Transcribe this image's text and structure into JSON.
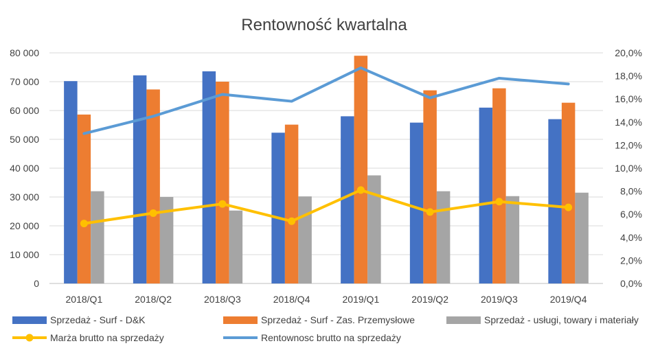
{
  "chart_data": {
    "type": "bar",
    "title": "Rentowność kwartalna",
    "categories": [
      "2018/Q1",
      "2018/Q2",
      "2018/Q3",
      "2018/Q4",
      "2019/Q1",
      "2019/Q2",
      "2019/Q3",
      "2019/Q4"
    ],
    "ylim": [
      0,
      80000
    ],
    "y_ticks": [
      "0",
      "10 000",
      "20 000",
      "30 000",
      "40 000",
      "50 000",
      "60 000",
      "70 000",
      "80 000"
    ],
    "y2lim": [
      0,
      20
    ],
    "y2_ticks": [
      "0,0%",
      "2,0%",
      "4,0%",
      "6,0%",
      "8,0%",
      "10,0%",
      "12,0%",
      "14,0%",
      "16,0%",
      "18,0%",
      "20,0%"
    ],
    "grid": true,
    "legend_position": "bottom",
    "series": [
      {
        "name": "Sprzedaż - Surf - D&K",
        "type": "bar",
        "axis": "left",
        "color": "#4472C4",
        "values": [
          70200,
          72200,
          73600,
          52300,
          58000,
          55800,
          61000,
          57000
        ]
      },
      {
        "name": "Sprzedaż - Surf - Zas. Przemysłowe",
        "type": "bar",
        "axis": "left",
        "color": "#ED7D31",
        "values": [
          58600,
          67300,
          70000,
          55100,
          79000,
          67000,
          67700,
          62700
        ]
      },
      {
        "name": "Sprzedaż - usługi, towary i materiały",
        "type": "bar",
        "axis": "left",
        "color": "#A5A5A5",
        "values": [
          32000,
          30000,
          25300,
          30200,
          37500,
          32000,
          30300,
          31500
        ]
      },
      {
        "name": "Marża brutto na sprzedaży",
        "type": "line",
        "axis": "right",
        "color": "#FFC000",
        "marker": "circle",
        "values": [
          5.2,
          6.1,
          6.9,
          5.4,
          8.1,
          6.2,
          7.1,
          6.6
        ]
      },
      {
        "name": "Rentownosc brutto na sprzedaży",
        "type": "line",
        "axis": "right",
        "color": "#5B9BD5",
        "marker": "none",
        "values": [
          13.0,
          14.5,
          16.4,
          15.8,
          18.7,
          16.1,
          17.8,
          17.3
        ]
      }
    ]
  }
}
